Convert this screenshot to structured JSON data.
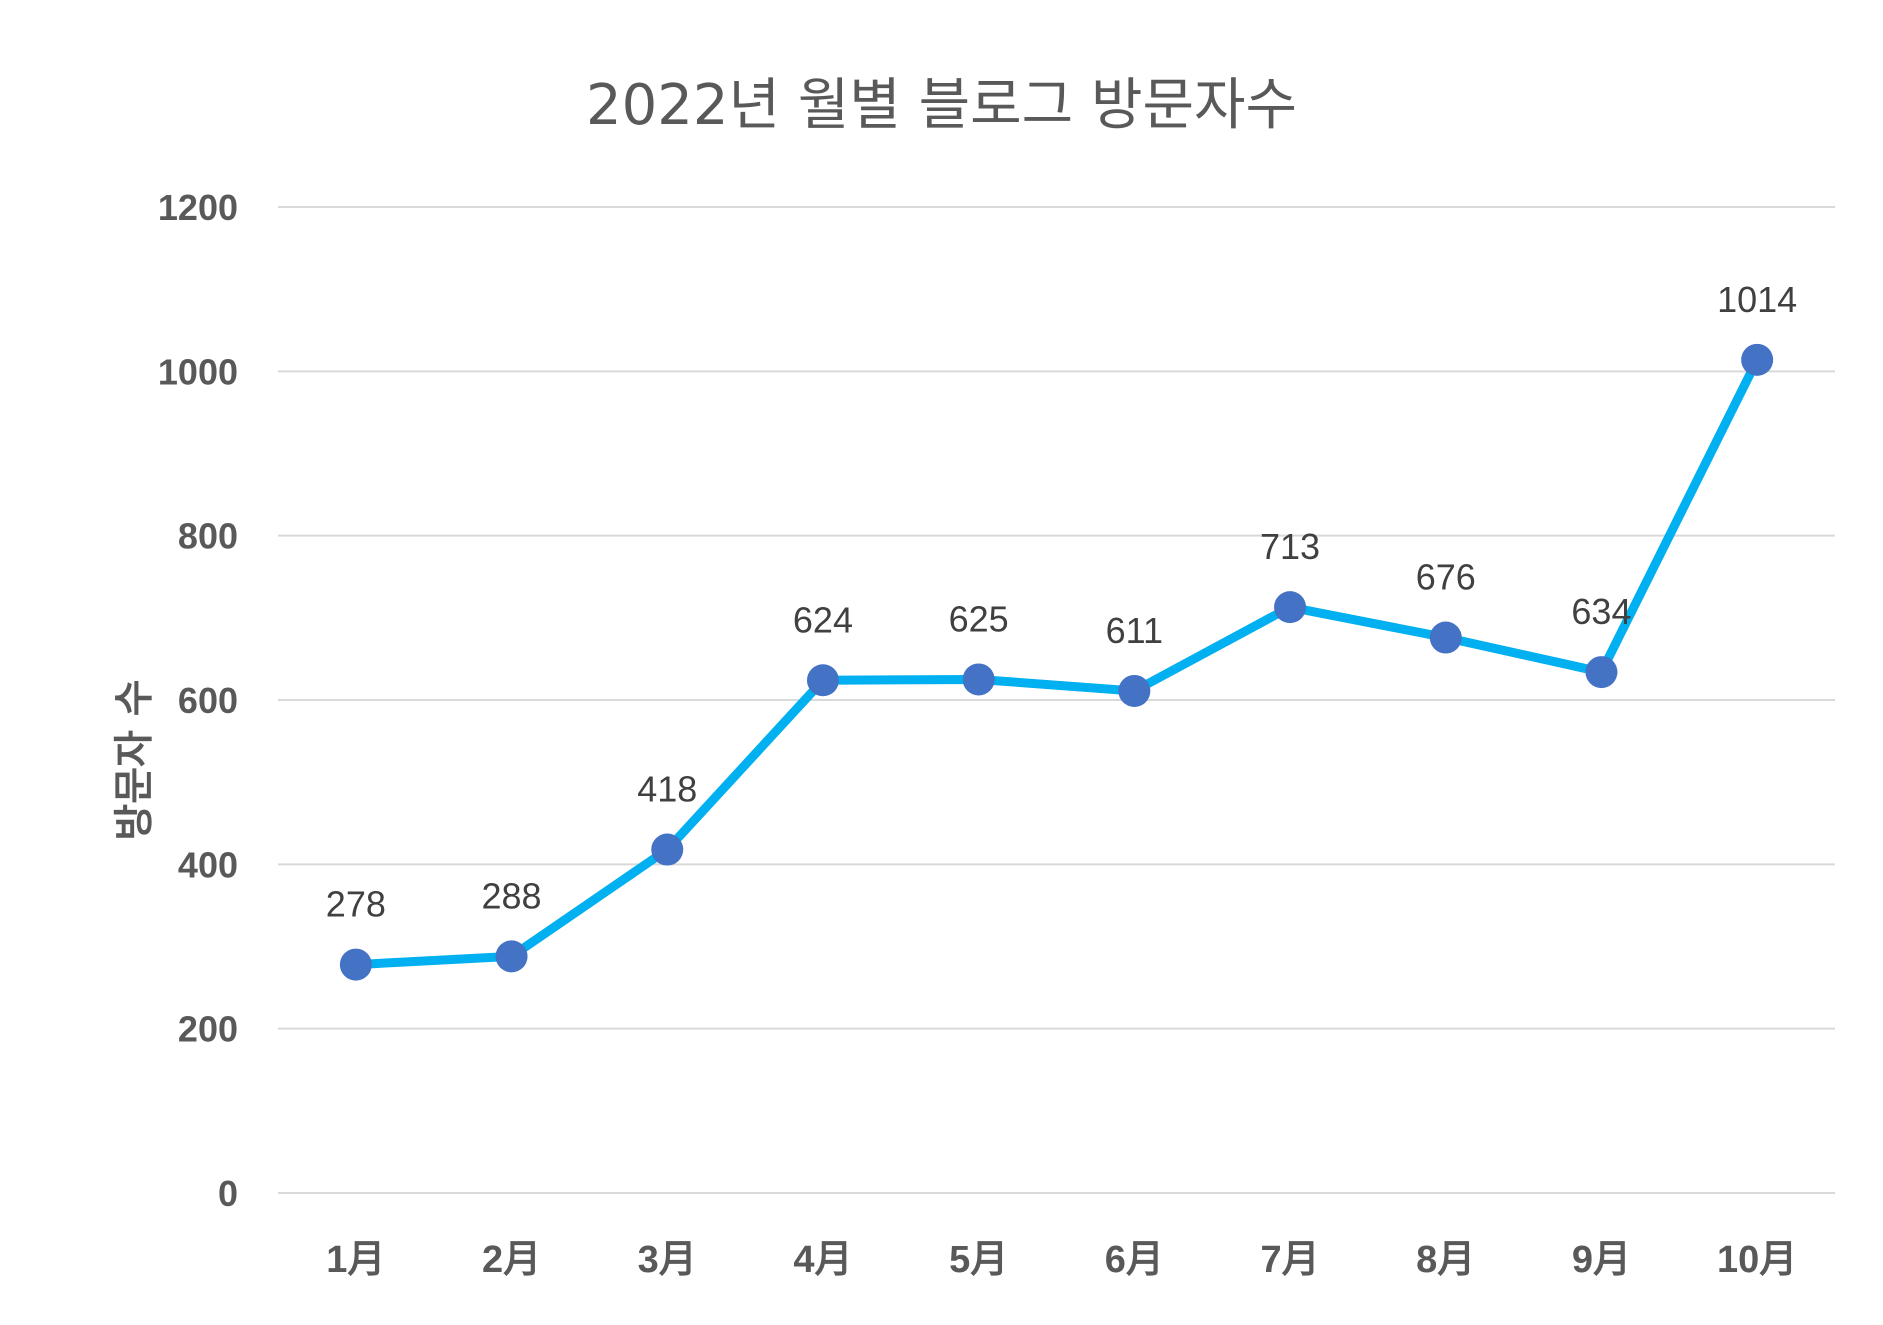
{
  "chart_data": {
    "type": "line",
    "title": "2022년 월별 블로그 방문자수",
    "xlabel": "",
    "ylabel": "방문자 수",
    "categories": [
      "1月",
      "2月",
      "3月",
      "4月",
      "5月",
      "6月",
      "7月",
      "8月",
      "9月",
      "10月"
    ],
    "series": [
      {
        "values": [
          278,
          288,
          418,
          624,
          625,
          611,
          713,
          676,
          634,
          1014
        ]
      }
    ],
    "ylim": [
      0,
      1200
    ],
    "yticks": [
      "0",
      "200",
      "400",
      "600",
      "800",
      "1000",
      "1200"
    ],
    "grid": true,
    "data_labels": true,
    "line_color": "#00B0F0",
    "marker_color": "#4472C4",
    "grid_color": "#D9D9D9",
    "text_color": "#595959"
  }
}
